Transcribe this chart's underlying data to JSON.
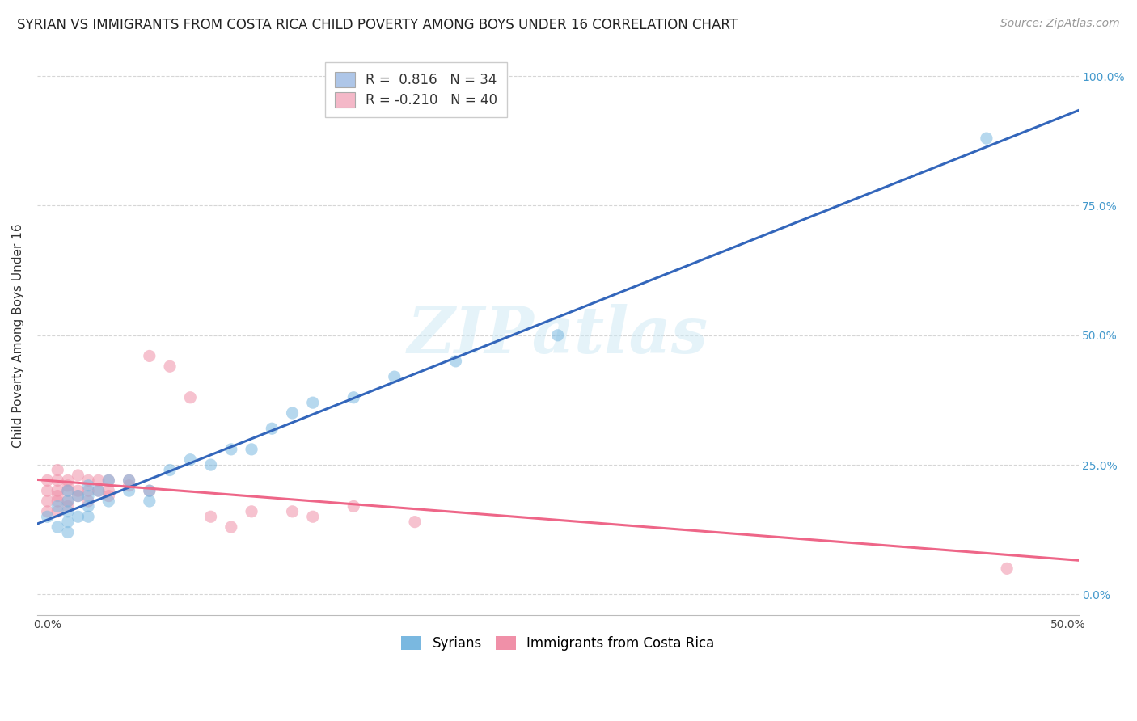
{
  "title": "SYRIAN VS IMMIGRANTS FROM COSTA RICA CHILD POVERTY AMONG BOYS UNDER 16 CORRELATION CHART",
  "source": "Source: ZipAtlas.com",
  "ylabel": "Child Poverty Among Boys Under 16",
  "xlim": [
    -0.005,
    0.505
  ],
  "ylim": [
    -0.04,
    1.04
  ],
  "xtick_labels": [
    "0.0%",
    "50.0%"
  ],
  "ytick_labels": [
    "0.0%",
    "25.0%",
    "50.0%",
    "75.0%",
    "100.0%"
  ],
  "ytick_values": [
    0.0,
    0.25,
    0.5,
    0.75,
    1.0
  ],
  "xtick_values": [
    0.0,
    0.5
  ],
  "watermark": "ZIPatlas",
  "legend_entries": [
    {
      "label": "R =  0.816   N = 34",
      "color": "#aec6e8"
    },
    {
      "label": "R = -0.210   N = 40",
      "color": "#f4b8c8"
    }
  ],
  "syrians_color": "#7ab8e0",
  "costa_rica_color": "#f090a8",
  "syrians_line_color": "#3366bb",
  "costa_rica_line_color": "#ee6688",
  "background_color": "#ffffff",
  "grid_color": "#cccccc",
  "syrians_x": [
    0.0,
    0.005,
    0.005,
    0.01,
    0.01,
    0.01,
    0.01,
    0.01,
    0.015,
    0.015,
    0.02,
    0.02,
    0.02,
    0.02,
    0.025,
    0.03,
    0.03,
    0.04,
    0.04,
    0.05,
    0.05,
    0.06,
    0.07,
    0.08,
    0.09,
    0.1,
    0.11,
    0.12,
    0.13,
    0.15,
    0.17,
    0.2,
    0.25,
    0.46
  ],
  "syrians_y": [
    0.15,
    0.17,
    0.13,
    0.2,
    0.16,
    0.18,
    0.14,
    0.12,
    0.19,
    0.15,
    0.17,
    0.21,
    0.15,
    0.19,
    0.2,
    0.18,
    0.22,
    0.22,
    0.2,
    0.2,
    0.18,
    0.24,
    0.26,
    0.25,
    0.28,
    0.28,
    0.32,
    0.35,
    0.37,
    0.38,
    0.42,
    0.45,
    0.5,
    0.88
  ],
  "costa_rica_x": [
    0.0,
    0.0,
    0.0,
    0.0,
    0.005,
    0.005,
    0.005,
    0.005,
    0.005,
    0.005,
    0.01,
    0.01,
    0.01,
    0.01,
    0.01,
    0.015,
    0.015,
    0.015,
    0.02,
    0.02,
    0.02,
    0.025,
    0.025,
    0.03,
    0.03,
    0.03,
    0.04,
    0.04,
    0.05,
    0.05,
    0.06,
    0.07,
    0.08,
    0.09,
    0.1,
    0.12,
    0.13,
    0.15,
    0.18,
    0.47
  ],
  "costa_rica_y": [
    0.2,
    0.18,
    0.16,
    0.22,
    0.22,
    0.2,
    0.18,
    0.24,
    0.16,
    0.19,
    0.21,
    0.2,
    0.18,
    0.22,
    0.17,
    0.2,
    0.23,
    0.19,
    0.22,
    0.2,
    0.18,
    0.22,
    0.2,
    0.22,
    0.2,
    0.19,
    0.21,
    0.22,
    0.2,
    0.46,
    0.44,
    0.38,
    0.15,
    0.13,
    0.16,
    0.16,
    0.15,
    0.17,
    0.14,
    0.05
  ],
  "title_fontsize": 12,
  "source_fontsize": 10,
  "axis_label_fontsize": 11,
  "tick_fontsize": 10
}
